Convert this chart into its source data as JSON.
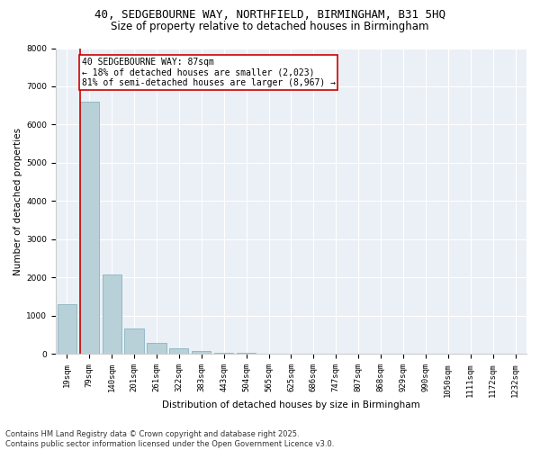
{
  "title_line1": "40, SEDGEBOURNE WAY, NORTHFIELD, BIRMINGHAM, B31 5HQ",
  "title_line2": "Size of property relative to detached houses in Birmingham",
  "xlabel": "Distribution of detached houses by size in Birmingham",
  "ylabel": "Number of detached properties",
  "categories": [
    "19sqm",
    "79sqm",
    "140sqm",
    "201sqm",
    "261sqm",
    "322sqm",
    "383sqm",
    "443sqm",
    "504sqm",
    "565sqm",
    "625sqm",
    "686sqm",
    "747sqm",
    "807sqm",
    "868sqm",
    "929sqm",
    "990sqm",
    "1050sqm",
    "1111sqm",
    "1172sqm",
    "1232sqm"
  ],
  "values": [
    1300,
    6600,
    2080,
    670,
    300,
    150,
    80,
    40,
    40,
    0,
    0,
    0,
    0,
    0,
    0,
    0,
    0,
    0,
    0,
    0,
    0
  ],
  "bar_color": "#b8d0d8",
  "bar_edge_color": "#7aaabb",
  "vline_color": "#cc0000",
  "annotation_box_color": "#cc0000",
  "annotation_text": "40 SEDGEBOURNE WAY: 87sqm\n← 18% of detached houses are smaller (2,023)\n81% of semi-detached houses are larger (8,967) →",
  "ylim": [
    0,
    8000
  ],
  "yticks": [
    0,
    1000,
    2000,
    3000,
    4000,
    5000,
    6000,
    7000,
    8000
  ],
  "bg_color": "#eaf0f5",
  "footer_line1": "Contains HM Land Registry data © Crown copyright and database right 2025.",
  "footer_line2": "Contains public sector information licensed under the Open Government Licence v3.0.",
  "title1_fontsize": 9,
  "title2_fontsize": 8.5,
  "axis_label_fontsize": 7.5,
  "tick_fontsize": 6.5,
  "annotation_fontsize": 7,
  "footer_fontsize": 6
}
